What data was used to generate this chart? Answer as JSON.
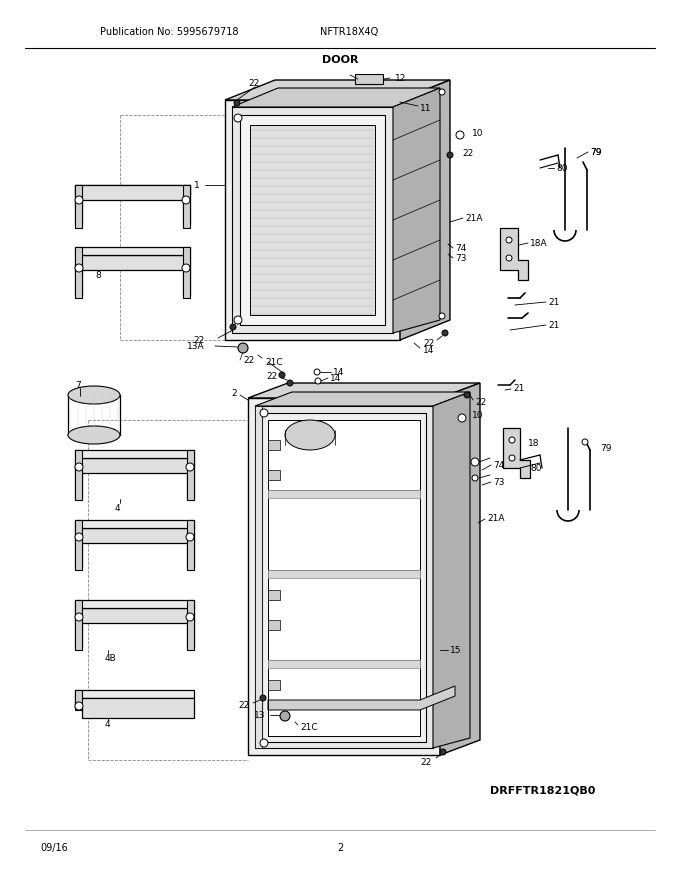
{
  "title": "DOOR",
  "pub_no": "Publication No: 5995679718",
  "model": "NFTR18X4Q",
  "diagram_id": "DRFFTR1821QB0",
  "date": "09/16",
  "page": "2",
  "bg_color": "#ffffff",
  "line_color": "#000000",
  "gray_light": "#d8d8d8",
  "gray_med": "#b8b8b8",
  "gray_dark": "#909090",
  "figsize": [
    6.8,
    8.8
  ],
  "dpi": 100
}
